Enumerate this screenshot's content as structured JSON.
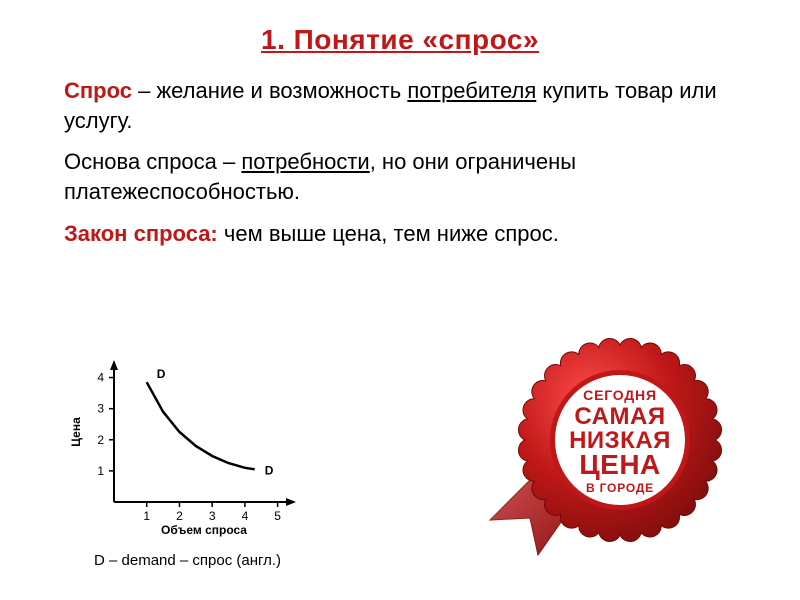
{
  "title": "1. Понятие «спрос»",
  "para1": {
    "term": "Спрос",
    "text_before": " – желание и возможность ",
    "underline1": "потребителя",
    "text_after": " купить товар или услугу."
  },
  "para2": {
    "text_before": "Основа спроса – ",
    "underline1": "потребности",
    "text_after": ", но они ограничены платежеспособностью."
  },
  "para3": {
    "law_label": "Закон спроса:",
    "text": " чем выше цена, тем ниже спрос."
  },
  "chart": {
    "type": "line",
    "x_label": "Объем спроса",
    "y_label": "Цена",
    "series_label_top": "D",
    "series_label_bottom": "D",
    "x_ticks": [
      "1",
      "2",
      "3",
      "4",
      "5"
    ],
    "y_ticks": [
      "1",
      "2",
      "3",
      "4"
    ],
    "curve_points": [
      [
        1.0,
        3.85
      ],
      [
        1.5,
        2.9
      ],
      [
        2.0,
        2.25
      ],
      [
        2.5,
        1.8
      ],
      [
        3.0,
        1.48
      ],
      [
        3.5,
        1.25
      ],
      [
        4.0,
        1.1
      ],
      [
        4.3,
        1.05
      ]
    ],
    "xlim": [
      0,
      5.5
    ],
    "ylim": [
      0,
      4.5
    ],
    "axis_color": "#000000",
    "curve_color": "#000000",
    "background_color": "#ffffff",
    "line_width": 2.5,
    "tick_fontsize": 12,
    "label_fontsize": 13
  },
  "caption": "D – demand – спрос (англ.)",
  "badge": {
    "outer_color": "#c01818",
    "inner_bg": "#ffffff",
    "text_color": "#c01818",
    "ribbon_color": "#c01818",
    "line1": "СЕГОДНЯ",
    "line2": "САМАЯ",
    "line3": "НИЗКАЯ",
    "line4": "ЦЕНА",
    "line5": "В ГОРОДЕ",
    "line1_size": 14,
    "line2_size": 24,
    "line3_size": 24,
    "line4_size": 28,
    "line5_size": 12,
    "scallop_count": 28,
    "outer_radius": 95,
    "inner_radius": 66
  },
  "colors": {
    "accent": "#c01818",
    "text": "#000000",
    "bg": "#ffffff"
  }
}
